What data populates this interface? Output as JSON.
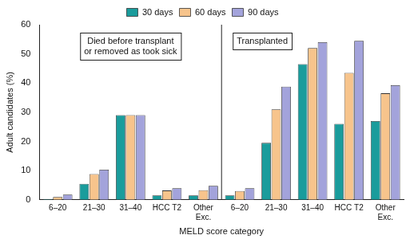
{
  "chart_data": {
    "type": "bar",
    "categories": [
      "6–20",
      "21–30",
      "31–40",
      "HCC T2",
      "Other Exc.",
      "6–20",
      "21–30",
      "31–40",
      "HCC T2",
      "Other Exc."
    ],
    "series": [
      {
        "name": "30 days",
        "color": "#1a9c9c",
        "values": [
          0.3,
          5.5,
          29,
          1.5,
          1.5,
          1.5,
          19.5,
          46.5,
          26,
          27
        ]
      },
      {
        "name": "60 days",
        "color": "#f7c48c",
        "values": [
          1,
          8.8,
          29,
          3.2,
          3.3,
          3,
          31,
          52,
          43.5,
          36.5
        ]
      },
      {
        "name": "90 days",
        "color": "#a3a3db",
        "values": [
          1.8,
          10.3,
          29,
          4,
          4.8,
          4,
          38.8,
          54,
          54.5,
          39.3
        ]
      }
    ],
    "x_label": "MELD score category",
    "y_label": "Adult candidates (%)",
    "ylim": [
      0,
      60
    ],
    "yticks": [
      0,
      10,
      20,
      30,
      40,
      50,
      60
    ],
    "grid": false,
    "legend": "top",
    "annotations": [
      [
        "Died before transplant",
        "or removed as took sick"
      ],
      [
        "Transplanted"
      ]
    ]
  }
}
